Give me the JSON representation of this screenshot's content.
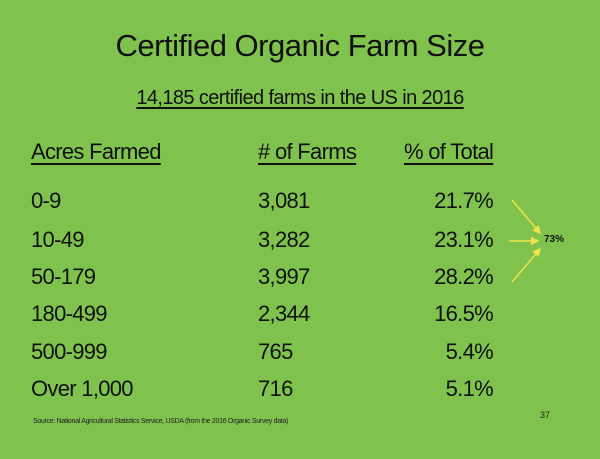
{
  "slide": {
    "title": "Certified Organic Farm Size",
    "subtitle": "14,185 certified farms in the US in 2016",
    "headers": {
      "acres": "Acres Farmed",
      "farms": "# of Farms",
      "pct": "% of Total"
    },
    "rows": [
      {
        "acres": "0-9",
        "farms": "3,081",
        "pct": "21.7%"
      },
      {
        "acres": "10-49",
        "farms": "3,282",
        "pct": "23.1%"
      },
      {
        "acres": "50-179",
        "farms": "3,997",
        "pct": "28.2%"
      },
      {
        "acres": "180-499",
        "farms": "2,344",
        "pct": "16.5%"
      },
      {
        "acres": "500-999",
        "farms": "765",
        "pct": "5.4%"
      },
      {
        "acres": "Over 1,000",
        "farms": "716",
        "pct": "5.1%"
      }
    ],
    "callout": "73%",
    "arrow_color": "#f2e44a",
    "background_color": "#7fc34e",
    "source": "Source: National Agricultural Statistics Service, USDA (from the 2016 Organic Survey data)",
    "page_number": "37"
  }
}
